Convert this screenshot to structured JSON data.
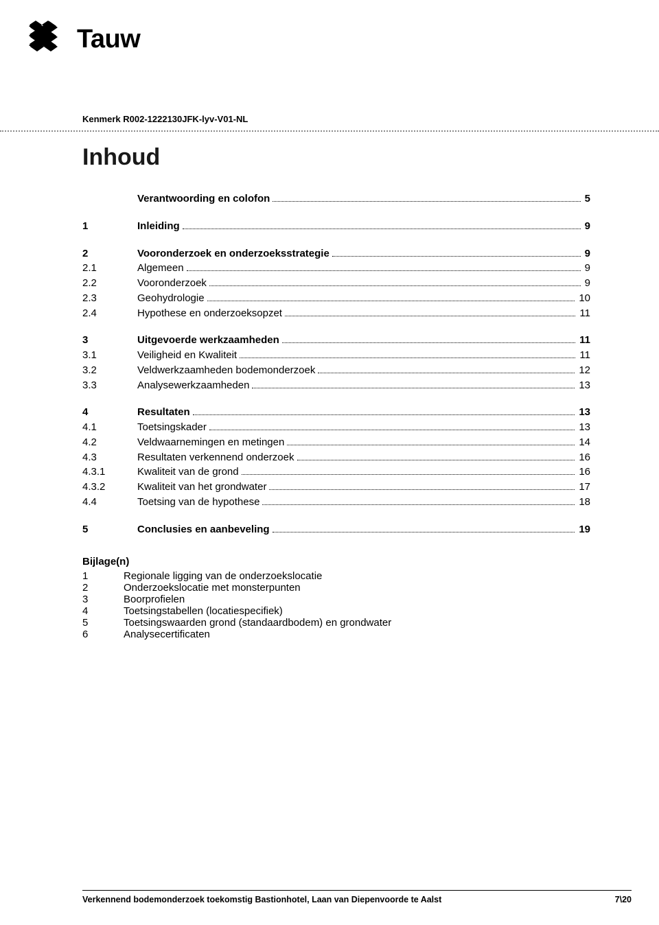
{
  "logo": {
    "text": "Tauw",
    "color": "#000000"
  },
  "kenmerk": "Kenmerk R002-1222130JFK-lyv-V01-NL",
  "title": "Inhoud",
  "toc": [
    {
      "type": "row",
      "bold": true,
      "num": "",
      "title": "Verantwoording en colofon",
      "page": "5",
      "single": true
    },
    {
      "type": "row",
      "bold": true,
      "num": "1",
      "title": "Inleiding",
      "page": "9",
      "single": true
    },
    {
      "type": "group",
      "rows": [
        {
          "bold": true,
          "num": "2",
          "title": "Vooronderzoek en onderzoeksstrategie",
          "page": "9"
        },
        {
          "bold": false,
          "num": "2.1",
          "title": "Algemeen",
          "page": "9"
        },
        {
          "bold": false,
          "num": "2.2",
          "title": "Vooronderzoek",
          "page": "9"
        },
        {
          "bold": false,
          "num": "2.3",
          "title": "Geohydrologie",
          "page": "10"
        },
        {
          "bold": false,
          "num": "2.4",
          "title": "Hypothese en onderzoeksopzet",
          "page": "11"
        }
      ]
    },
    {
      "type": "group",
      "rows": [
        {
          "bold": true,
          "num": "3",
          "title": "Uitgevoerde werkzaamheden",
          "page": "11"
        },
        {
          "bold": false,
          "num": "3.1",
          "title": "Veiligheid en Kwaliteit",
          "page": "11"
        },
        {
          "bold": false,
          "num": "3.2",
          "title": "Veldwerkzaamheden bodemonderzoek",
          "page": "12"
        },
        {
          "bold": false,
          "num": "3.3",
          "title": "Analysewerkzaamheden",
          "page": "13"
        }
      ]
    },
    {
      "type": "group",
      "rows": [
        {
          "bold": true,
          "num": "4",
          "title": "Resultaten",
          "page": "13"
        },
        {
          "bold": false,
          "num": "4.1",
          "title": "Toetsingskader",
          "page": "13"
        },
        {
          "bold": false,
          "num": "4.2",
          "title": "Veldwaarnemingen en metingen",
          "page": "14"
        },
        {
          "bold": false,
          "num": "4.3",
          "title": "Resultaten verkennend onderzoek",
          "page": "16"
        },
        {
          "bold": false,
          "num": "4.3.1",
          "title": "Kwaliteit van de grond",
          "page": "16"
        },
        {
          "bold": false,
          "num": "4.3.2",
          "title": "Kwaliteit van het grondwater",
          "page": "17"
        },
        {
          "bold": false,
          "num": "4.4",
          "title": "Toetsing van de hypothese",
          "page": "18"
        }
      ]
    },
    {
      "type": "row",
      "bold": true,
      "num": "5",
      "title": "Conclusies en aanbeveling",
      "page": "19",
      "single": true
    }
  ],
  "bijlagen": {
    "heading": "Bijlage(n)",
    "items": [
      {
        "n": "1",
        "t": "Regionale ligging van de onderzoekslocatie"
      },
      {
        "n": "2",
        "t": "Onderzoekslocatie met monsterpunten"
      },
      {
        "n": "3",
        "t": "Boorprofielen"
      },
      {
        "n": "4",
        "t": "Toetsingstabellen (locatiespecifiek)"
      },
      {
        "n": "5",
        "t": "Toetsingswaarden grond (standaardbodem) en grondwater"
      },
      {
        "n": "6",
        "t": "Analysecertificaten"
      }
    ]
  },
  "footer": {
    "left": "Verkennend bodemonderzoek toekomstig Bastionhotel, Laan van Diepenvoorde te Aalst",
    "right": "7\\20"
  }
}
